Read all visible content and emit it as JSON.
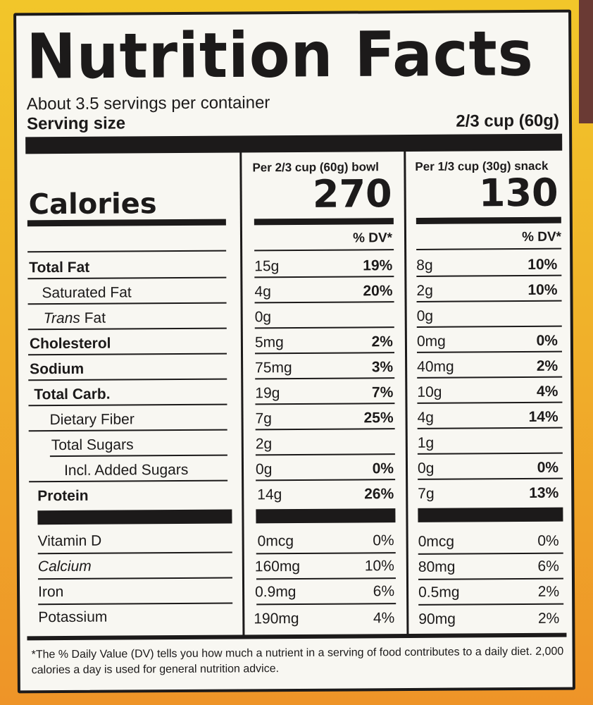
{
  "title": "Nutrition Facts",
  "servings_per_container": "About 3.5 servings per container",
  "serving_size_label": "Serving size",
  "serving_size_value": "2/3 cup (60g)",
  "column_bowl": "Per 2/3 cup (60g) bowl",
  "column_snack": "Per 1/3 cup (30g) snack",
  "calories_label": "Calories",
  "calories_bowl": "270",
  "calories_snack": "130",
  "dv_header": "% DV*",
  "nutrients": [
    {
      "label": "Total Fat",
      "bowl_amt": "15g",
      "bowl_dv": "19%",
      "snack_amt": "8g",
      "snack_dv": "10%"
    },
    {
      "label": "Saturated Fat",
      "bowl_amt": "4g",
      "bowl_dv": "20%",
      "snack_amt": "2g",
      "snack_dv": "10%"
    },
    {
      "label": "Trans",
      "label_suffix": " Fat",
      "bowl_amt": "0g",
      "bowl_dv": "",
      "snack_amt": "0g",
      "snack_dv": ""
    },
    {
      "label": "Cholesterol",
      "bowl_amt": "5mg",
      "bowl_dv": "2%",
      "snack_amt": "0mg",
      "snack_dv": "0%"
    },
    {
      "label": "Sodium",
      "bowl_amt": "75mg",
      "bowl_dv": "3%",
      "snack_amt": "40mg",
      "snack_dv": "2%"
    },
    {
      "label": "Total Carb.",
      "bowl_amt": "19g",
      "bowl_dv": "7%",
      "snack_amt": "10g",
      "snack_dv": "4%"
    },
    {
      "label": "Dietary Fiber",
      "bowl_amt": "7g",
      "bowl_dv": "25%",
      "snack_amt": "4g",
      "snack_dv": "14%"
    },
    {
      "label": "Total Sugars",
      "bowl_amt": "2g",
      "bowl_dv": "",
      "snack_amt": "1g",
      "snack_dv": ""
    },
    {
      "label": "Incl. Added Sugars",
      "bowl_amt": "0g",
      "bowl_dv": "0%",
      "snack_amt": "0g",
      "snack_dv": "0%"
    },
    {
      "label": "Protein",
      "bowl_amt": "14g",
      "bowl_dv": "26%",
      "snack_amt": "7g",
      "snack_dv": "13%"
    }
  ],
  "vitamins": [
    {
      "label": "Vitamin D",
      "bowl_amt": "0mcg",
      "bowl_dv": "0%",
      "snack_amt": "0mcg",
      "snack_dv": "0%"
    },
    {
      "label": "Calcium",
      "bowl_amt": "160mg",
      "bowl_dv": "10%",
      "snack_amt": "80mg",
      "snack_dv": "6%"
    },
    {
      "label": "Iron",
      "bowl_amt": "0.9mg",
      "bowl_dv": "6%",
      "snack_amt": "0.5mg",
      "snack_dv": "2%"
    },
    {
      "label": "Potassium",
      "bowl_amt": "190mg",
      "bowl_dv": "4%",
      "snack_amt": "90mg",
      "snack_dv": "2%"
    }
  ],
  "footnote": "*The % Daily Value (DV) tells you how much a nutrient in a serving of food contributes to a daily diet. 2,000 calories a day is used for general nutrition advice.",
  "colors": {
    "ink": "#1c1a1a",
    "panel": "#f8f7f2",
    "package_yellow": "#f2c62a",
    "package_orange": "#ee9428",
    "package_brown": "#6a3a34"
  }
}
